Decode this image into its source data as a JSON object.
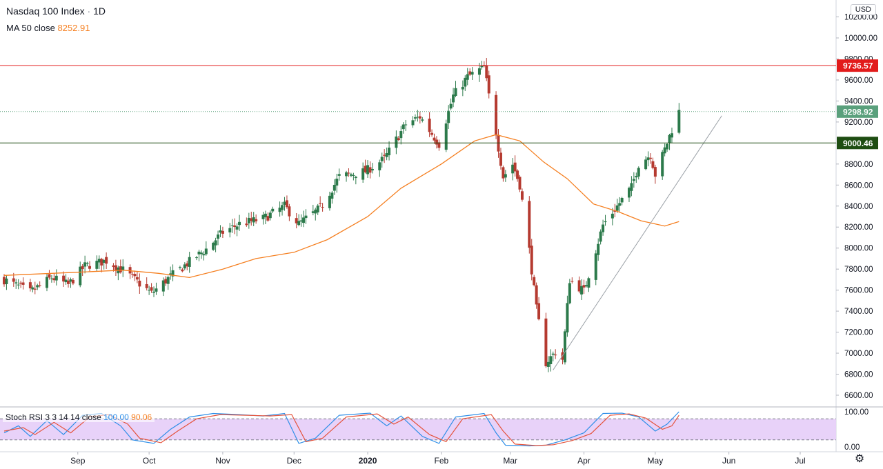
{
  "header": {
    "symbol": "Nasdaq 100 Index",
    "separator": "·",
    "interval": "1D",
    "ma_label": "MA 50 close",
    "ma_value": "8252.91",
    "osc_label": "Stoch RSI 3 3 14 14 close",
    "osc_k_value": "100.00",
    "osc_d_value": "90.06",
    "currency": "USD"
  },
  "colors": {
    "up": "#2c7a4b",
    "down": "#b53a30",
    "ma": "#f57f20",
    "resistance": "#e21b1b",
    "support": "#1e4d12",
    "last_price": "#5aa07c",
    "stoch_k": "#2f8fe8",
    "stoch_d": "#e5533c",
    "band_fill": "#e6cdf8",
    "trendline": "#9aa0a6"
  },
  "chart_data": [
    {
      "type": "candlestick",
      "title": "Nasdaq 100 Index",
      "price_axis": {
        "ticks": [
          "10200.00",
          "10000.00",
          "9800.00",
          "9600.00",
          "9400.00",
          "9200.00",
          "9000.00",
          "8800.00",
          "8600.00",
          "8400.00",
          "8200.00",
          "8000.00",
          "7800.00",
          "7600.00",
          "7400.00",
          "7200.00",
          "7000.00",
          "6800.00",
          "6600.00"
        ],
        "range": [
          6500,
          10250
        ]
      },
      "time_axis": {
        "ticks": [
          "Sep",
          "Oct",
          "Nov",
          "Dec",
          "2020",
          "Feb",
          "Mar",
          "Apr",
          "May",
          "Jun",
          "Jul"
        ],
        "major": "2020"
      },
      "horizontal_lines": [
        {
          "label": "9736.57",
          "value": 9736.57,
          "role": "resistance"
        },
        {
          "label": "9000.46",
          "value": 9000.46,
          "role": "support"
        },
        {
          "label": "9298.92",
          "value": 9298.92,
          "role": "last_price"
        }
      ],
      "trendline": {
        "from": [
          "2020-03-19",
          6840
        ],
        "to": [
          "2020-05-29",
          9260
        ]
      },
      "close_path": [
        [
          "2019-08-01",
          7700
        ],
        [
          "2019-08-12",
          7580
        ],
        [
          "2019-08-21",
          7720
        ],
        [
          "2019-08-28",
          7650
        ],
        [
          "2019-09-04",
          7830
        ],
        [
          "2019-09-13",
          7880
        ],
        [
          "2019-09-20",
          7790
        ],
        [
          "2019-09-26",
          7680
        ],
        [
          "2019-10-02",
          7570
        ],
        [
          "2019-10-10",
          7730
        ],
        [
          "2019-10-18",
          7870
        ],
        [
          "2019-10-25",
          7990
        ],
        [
          "2019-11-01",
          8150
        ],
        [
          "2019-11-08",
          8230
        ],
        [
          "2019-11-18",
          8280
        ],
        [
          "2019-11-27",
          8400
        ],
        [
          "2019-12-03",
          8230
        ],
        [
          "2019-12-12",
          8380
        ],
        [
          "2019-12-20",
          8680
        ],
        [
          "2019-12-31",
          8730
        ],
        [
          "2020-01-08",
          8850
        ],
        [
          "2020-01-17",
          9180
        ],
        [
          "2020-01-23",
          9250
        ],
        [
          "2020-01-31",
          8990
        ],
        [
          "2020-02-06",
          9450
        ],
        [
          "2020-02-12",
          9630
        ],
        [
          "2020-02-19",
          9720
        ],
        [
          "2020-02-21",
          9450
        ],
        [
          "2020-02-24",
          9100
        ],
        [
          "2020-02-27",
          8680
        ],
        [
          "2020-03-02",
          8800
        ],
        [
          "2020-03-05",
          8600
        ],
        [
          "2020-03-09",
          7980
        ],
        [
          "2020-03-12",
          7420
        ],
        [
          "2020-03-16",
          6910
        ],
        [
          "2020-03-20",
          7010
        ],
        [
          "2020-03-23",
          6940
        ],
        [
          "2020-03-26",
          7700
        ],
        [
          "2020-04-01",
          7590
        ],
        [
          "2020-04-09",
          8220
        ],
        [
          "2020-04-15",
          8400
        ],
        [
          "2020-04-21",
          8580
        ],
        [
          "2020-04-24",
          8800
        ],
        [
          "2020-04-29",
          8890
        ],
        [
          "2020-05-01",
          8700
        ],
        [
          "2020-05-06",
          9000
        ],
        [
          "2020-05-08",
          9130
        ],
        [
          "2020-05-11",
          9298.92
        ]
      ],
      "ma50_path": [
        [
          "2019-08-01",
          7740
        ],
        [
          "2019-09-01",
          7770
        ],
        [
          "2019-09-20",
          7790
        ],
        [
          "2019-10-05",
          7760
        ],
        [
          "2019-10-18",
          7720
        ],
        [
          "2019-11-01",
          7800
        ],
        [
          "2019-11-15",
          7900
        ],
        [
          "2019-12-01",
          7960
        ],
        [
          "2019-12-15",
          8080
        ],
        [
          "2020-01-01",
          8300
        ],
        [
          "2020-01-15",
          8570
        ],
        [
          "2020-02-01",
          8800
        ],
        [
          "2020-02-15",
          9020
        ],
        [
          "2020-02-24",
          9080
        ],
        [
          "2020-03-05",
          9020
        ],
        [
          "2020-03-15",
          8820
        ],
        [
          "2020-03-25",
          8660
        ],
        [
          "2020-04-05",
          8420
        ],
        [
          "2020-04-15",
          8350
        ],
        [
          "2020-04-25",
          8260
        ],
        [
          "2020-05-05",
          8210
        ],
        [
          "2020-05-11",
          8252.91
        ]
      ]
    },
    {
      "type": "line",
      "title": "Stoch RSI 3 3 14 14 close",
      "y_axis": {
        "ticks": [
          "100.00",
          "0.00"
        ],
        "range": [
          0,
          100
        ],
        "bands": [
          20,
          80
        ]
      },
      "series": [
        {
          "name": "K",
          "last": 100.0,
          "points": [
            [
              "2019-08-01",
              40
            ],
            [
              "2019-08-07",
              60
            ],
            [
              "2019-08-12",
              30
            ],
            [
              "2019-08-19",
              75
            ],
            [
              "2019-08-26",
              35
            ],
            [
              "2019-09-03",
              90
            ],
            [
              "2019-09-11",
              95
            ],
            [
              "2019-09-19",
              60
            ],
            [
              "2019-09-24",
              20
            ],
            [
              "2019-10-03",
              10
            ],
            [
              "2019-10-10",
              50
            ],
            [
              "2019-10-18",
              85
            ],
            [
              "2019-10-28",
              95
            ],
            [
              "2019-11-08",
              92
            ],
            [
              "2019-11-18",
              88
            ],
            [
              "2019-11-27",
              95
            ],
            [
              "2019-12-03",
              10
            ],
            [
              "2019-12-10",
              25
            ],
            [
              "2019-12-20",
              90
            ],
            [
              "2020-01-02",
              96
            ],
            [
              "2020-01-09",
              60
            ],
            [
              "2020-01-15",
              88
            ],
            [
              "2020-01-24",
              30
            ],
            [
              "2020-01-31",
              10
            ],
            [
              "2020-02-07",
              85
            ],
            [
              "2020-02-19",
              95
            ],
            [
              "2020-02-24",
              40
            ],
            [
              "2020-02-28",
              5
            ],
            [
              "2020-03-09",
              3
            ],
            [
              "2020-03-16",
              5
            ],
            [
              "2020-03-24",
              20
            ],
            [
              "2020-04-01",
              40
            ],
            [
              "2020-04-09",
              95
            ],
            [
              "2020-04-17",
              96
            ],
            [
              "2020-04-24",
              85
            ],
            [
              "2020-05-01",
              45
            ],
            [
              "2020-05-06",
              65
            ],
            [
              "2020-05-11",
              100
            ]
          ]
        },
        {
          "name": "D",
          "last": 90.06,
          "points": [
            [
              "2019-08-01",
              45
            ],
            [
              "2019-08-09",
              55
            ],
            [
              "2019-08-14",
              35
            ],
            [
              "2019-08-22",
              70
            ],
            [
              "2019-08-29",
              40
            ],
            [
              "2019-09-06",
              85
            ],
            [
              "2019-09-14",
              92
            ],
            [
              "2019-09-22",
              65
            ],
            [
              "2019-09-27",
              25
            ],
            [
              "2019-10-06",
              12
            ],
            [
              "2019-10-13",
              45
            ],
            [
              "2019-10-21",
              80
            ],
            [
              "2019-10-31",
              92
            ],
            [
              "2019-11-11",
              90
            ],
            [
              "2019-11-21",
              88
            ],
            [
              "2019-11-30",
              92
            ],
            [
              "2019-12-06",
              15
            ],
            [
              "2019-12-13",
              25
            ],
            [
              "2019-12-23",
              85
            ],
            [
              "2020-01-05",
              94
            ],
            [
              "2020-01-12",
              65
            ],
            [
              "2020-01-18",
              85
            ],
            [
              "2020-01-27",
              35
            ],
            [
              "2020-02-03",
              15
            ],
            [
              "2020-02-10",
              80
            ],
            [
              "2020-02-22",
              92
            ],
            [
              "2020-02-27",
              45
            ],
            [
              "2020-03-03",
              8
            ],
            [
              "2020-03-12",
              4
            ],
            [
              "2020-03-19",
              6
            ],
            [
              "2020-03-27",
              18
            ],
            [
              "2020-04-04",
              38
            ],
            [
              "2020-04-12",
              90
            ],
            [
              "2020-04-20",
              94
            ],
            [
              "2020-04-27",
              82
            ],
            [
              "2020-05-04",
              50
            ],
            [
              "2020-05-08",
              60
            ],
            [
              "2020-05-11",
              90.06
            ]
          ]
        }
      ]
    }
  ]
}
